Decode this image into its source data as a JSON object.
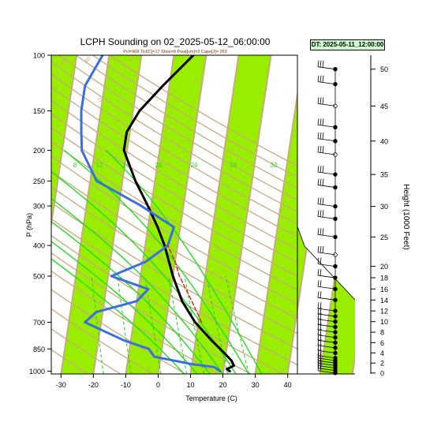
{
  "title": "LCPH Sounding on 02_2025-05-12_06:00:00",
  "subtitle": "Pcl=968 Tlcl[C]=17 Shox=8 Pwat[cm]=2 Cape[J]= 259",
  "dt_label": "DT: 2025-05-11_12:00:00",
  "chart_data": {
    "type": "skew-t",
    "xlabel": "Temperature (C)",
    "ylabel": "P (hPa)",
    "y2label": "Height (1000 Feet)",
    "xlim": [
      -33,
      43
    ],
    "ylim": [
      1020,
      100
    ],
    "x_ticks": [
      -30,
      -20,
      -10,
      0,
      10,
      20,
      30,
      40
    ],
    "p_ticks": [
      100,
      150,
      200,
      250,
      300,
      400,
      500,
      700,
      850,
      1000
    ],
    "height_ticks_kft": [
      0,
      2,
      4,
      6,
      8,
      10,
      12,
      14,
      16,
      18,
      20,
      25,
      30,
      35,
      40,
      45,
      50
    ],
    "mixing_ratio_labels": [
      "8",
      "12",
      "16",
      "20",
      "24",
      "28",
      "32"
    ],
    "isotherm_labels": [
      "-80",
      "-60",
      "-40",
      "-20",
      "0",
      "10",
      "20",
      "30"
    ],
    "series": [
      {
        "name": "temperature",
        "color": "#000000",
        "points": [
          [
            1000,
            22
          ],
          [
            985,
            21
          ],
          [
            960,
            23
          ],
          [
            925,
            22
          ],
          [
            850,
            18
          ],
          [
            800,
            15
          ],
          [
            700,
            9
          ],
          [
            600,
            4
          ],
          [
            500,
            0
          ],
          [
            400,
            -4
          ],
          [
            350,
            -7
          ],
          [
            300,
            -11
          ],
          [
            250,
            -16
          ],
          [
            200,
            -21
          ],
          [
            175,
            -21
          ],
          [
            150,
            -18
          ],
          [
            125,
            -12
          ],
          [
            100,
            -4
          ]
        ]
      },
      {
        "name": "dewpoint",
        "color": "#3b6ee0",
        "points": [
          [
            1000,
            19
          ],
          [
            970,
            17
          ],
          [
            950,
            10
          ],
          [
            900,
            -2
          ],
          [
            850,
            -4
          ],
          [
            800,
            -12
          ],
          [
            700,
            -25
          ],
          [
            650,
            -22
          ],
          [
            600,
            -10
          ],
          [
            550,
            -7
          ],
          [
            500,
            -19
          ],
          [
            450,
            -9
          ],
          [
            400,
            -3
          ],
          [
            350,
            -2
          ],
          [
            300,
            -13
          ],
          [
            250,
            -28
          ],
          [
            200,
            -34
          ],
          [
            175,
            -35
          ],
          [
            150,
            -36
          ],
          [
            125,
            -36
          ],
          [
            100,
            -32
          ]
        ]
      },
      {
        "name": "parcel",
        "color": "#e02020",
        "points": [
          [
            700,
            11
          ],
          [
            600,
            7
          ],
          [
            500,
            2
          ],
          [
            450,
            0
          ],
          [
            400,
            -3
          ]
        ]
      }
    ],
    "wind_barb_heights_kft": [
      0,
      0.5,
      1,
      1.5,
      2,
      2.5,
      3,
      4,
      5,
      6,
      7,
      8,
      9,
      10,
      11,
      12,
      14,
      16,
      18,
      20,
      22,
      25,
      28,
      30,
      33,
      35,
      38,
      40,
      42,
      45,
      48,
      50
    ]
  }
}
